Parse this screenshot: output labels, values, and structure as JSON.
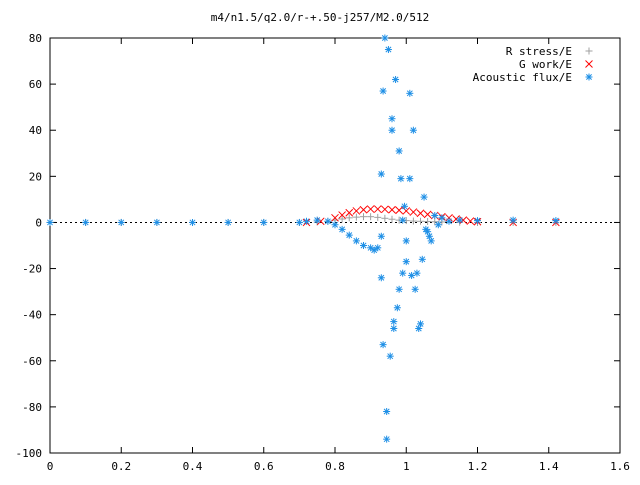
{
  "chart_data": {
    "type": "scatter",
    "title": "m4/n1.5/q2.0/r-+.50-j257/M2.0/512",
    "xlabel": "",
    "ylabel": "",
    "xlim": [
      0,
      1.6
    ],
    "ylim": [
      -100,
      80
    ],
    "x_ticks": [
      "0",
      "0.2",
      "0.4",
      "0.6",
      "0.8",
      "1",
      "1.2",
      "1.4",
      "1.6"
    ],
    "y_ticks": [
      "80",
      "60",
      "40",
      "20",
      "0",
      "-20",
      "-40",
      "-60",
      "-80",
      "-100"
    ],
    "grid": false,
    "legend_position": "top-right",
    "series": [
      {
        "name": "R stress/E",
        "marker": "plus",
        "color": "#a0a0a0",
        "points": [
          [
            0.0,
            0
          ],
          [
            0.1,
            0
          ],
          [
            0.2,
            0
          ],
          [
            0.3,
            0
          ],
          [
            0.4,
            0
          ],
          [
            0.5,
            0
          ],
          [
            0.6,
            0
          ],
          [
            0.7,
            0
          ],
          [
            0.75,
            0.2
          ],
          [
            0.78,
            0.5
          ],
          [
            0.8,
            1.0
          ],
          [
            0.82,
            1.5
          ],
          [
            0.84,
            2.0
          ],
          [
            0.86,
            2.3
          ],
          [
            0.88,
            2.5
          ],
          [
            0.9,
            2.5
          ],
          [
            0.92,
            2.2
          ],
          [
            0.94,
            1.8
          ],
          [
            0.96,
            1.4
          ],
          [
            0.98,
            1.0
          ],
          [
            1.0,
            0.8
          ],
          [
            1.02,
            0.6
          ],
          [
            1.04,
            0.5
          ],
          [
            1.06,
            0.4
          ],
          [
            1.08,
            0.3
          ],
          [
            1.1,
            0.2
          ],
          [
            1.15,
            0.1
          ],
          [
            1.2,
            0
          ],
          [
            1.3,
            0
          ],
          [
            1.42,
            0
          ]
        ]
      },
      {
        "name": "G work/E",
        "marker": "cross",
        "color": "#ff0000",
        "points": [
          [
            0.72,
            0
          ],
          [
            0.76,
            0.5
          ],
          [
            0.8,
            2.0
          ],
          [
            0.82,
            3.2
          ],
          [
            0.84,
            4.2
          ],
          [
            0.86,
            5.0
          ],
          [
            0.88,
            5.5
          ],
          [
            0.9,
            5.8
          ],
          [
            0.92,
            5.8
          ],
          [
            0.94,
            5.7
          ],
          [
            0.96,
            5.5
          ],
          [
            0.98,
            5.3
          ],
          [
            1.0,
            5.0
          ],
          [
            1.02,
            4.5
          ],
          [
            1.04,
            4.0
          ],
          [
            1.06,
            3.5
          ],
          [
            1.08,
            3.0
          ],
          [
            1.1,
            2.5
          ],
          [
            1.12,
            2.0
          ],
          [
            1.14,
            1.5
          ],
          [
            1.16,
            1.0
          ],
          [
            1.18,
            0.6
          ],
          [
            1.2,
            0.3
          ],
          [
            1.3,
            0
          ],
          [
            1.42,
            0
          ]
        ]
      },
      {
        "name": "Acoustic flux/E",
        "marker": "star",
        "color": "#1e8fe6",
        "points": [
          [
            0.0,
            0
          ],
          [
            0.1,
            0
          ],
          [
            0.2,
            0
          ],
          [
            0.3,
            0
          ],
          [
            0.4,
            0
          ],
          [
            0.5,
            0
          ],
          [
            0.6,
            0
          ],
          [
            0.7,
            0
          ],
          [
            0.72,
            0.5
          ],
          [
            0.75,
            1.0
          ],
          [
            0.78,
            0.5
          ],
          [
            0.8,
            -1.0
          ],
          [
            0.82,
            -3.0
          ],
          [
            0.84,
            -5.5
          ],
          [
            0.86,
            -8.0
          ],
          [
            0.88,
            -10.0
          ],
          [
            0.9,
            -11.0
          ],
          [
            0.91,
            -12.0
          ],
          [
            0.92,
            -11.0
          ],
          [
            0.93,
            -6.0
          ],
          [
            0.93,
            -24.0
          ],
          [
            0.93,
            21.0
          ],
          [
            0.935,
            -53.0
          ],
          [
            0.935,
            57.0
          ],
          [
            0.94,
            80.0
          ],
          [
            0.945,
            -82.0
          ],
          [
            0.945,
            -94.0
          ],
          [
            0.95,
            75.0
          ],
          [
            0.955,
            -58.0
          ],
          [
            0.96,
            40.0
          ],
          [
            0.96,
            45.0
          ],
          [
            0.965,
            -46.0
          ],
          [
            0.965,
            -43.0
          ],
          [
            0.97,
            62.0
          ],
          [
            0.975,
            -37.0
          ],
          [
            0.98,
            31.0
          ],
          [
            0.98,
            -29.0
          ],
          [
            0.985,
            19.0
          ],
          [
            0.99,
            -22.0
          ],
          [
            0.99,
            1.0
          ],
          [
            0.995,
            7.0
          ],
          [
            1.0,
            -17.0
          ],
          [
            1.0,
            -8.0
          ],
          [
            1.01,
            56.0
          ],
          [
            1.01,
            19.0
          ],
          [
            1.015,
            -23.0
          ],
          [
            1.02,
            40.0
          ],
          [
            1.025,
            -29.0
          ],
          [
            1.03,
            -22.0
          ],
          [
            1.035,
            -46.0
          ],
          [
            1.04,
            -44.0
          ],
          [
            1.045,
            -16.0
          ],
          [
            1.05,
            11.0
          ],
          [
            1.055,
            -3.0
          ],
          [
            1.06,
            -4.0
          ],
          [
            1.065,
            -6.0
          ],
          [
            1.07,
            -8.0
          ],
          [
            1.08,
            3.0
          ],
          [
            1.09,
            -1.0
          ],
          [
            1.1,
            2.0
          ],
          [
            1.12,
            0.5
          ],
          [
            1.15,
            1.0
          ],
          [
            1.2,
            0.8
          ],
          [
            1.3,
            1.0
          ],
          [
            1.42,
            0.8
          ]
        ]
      }
    ]
  }
}
